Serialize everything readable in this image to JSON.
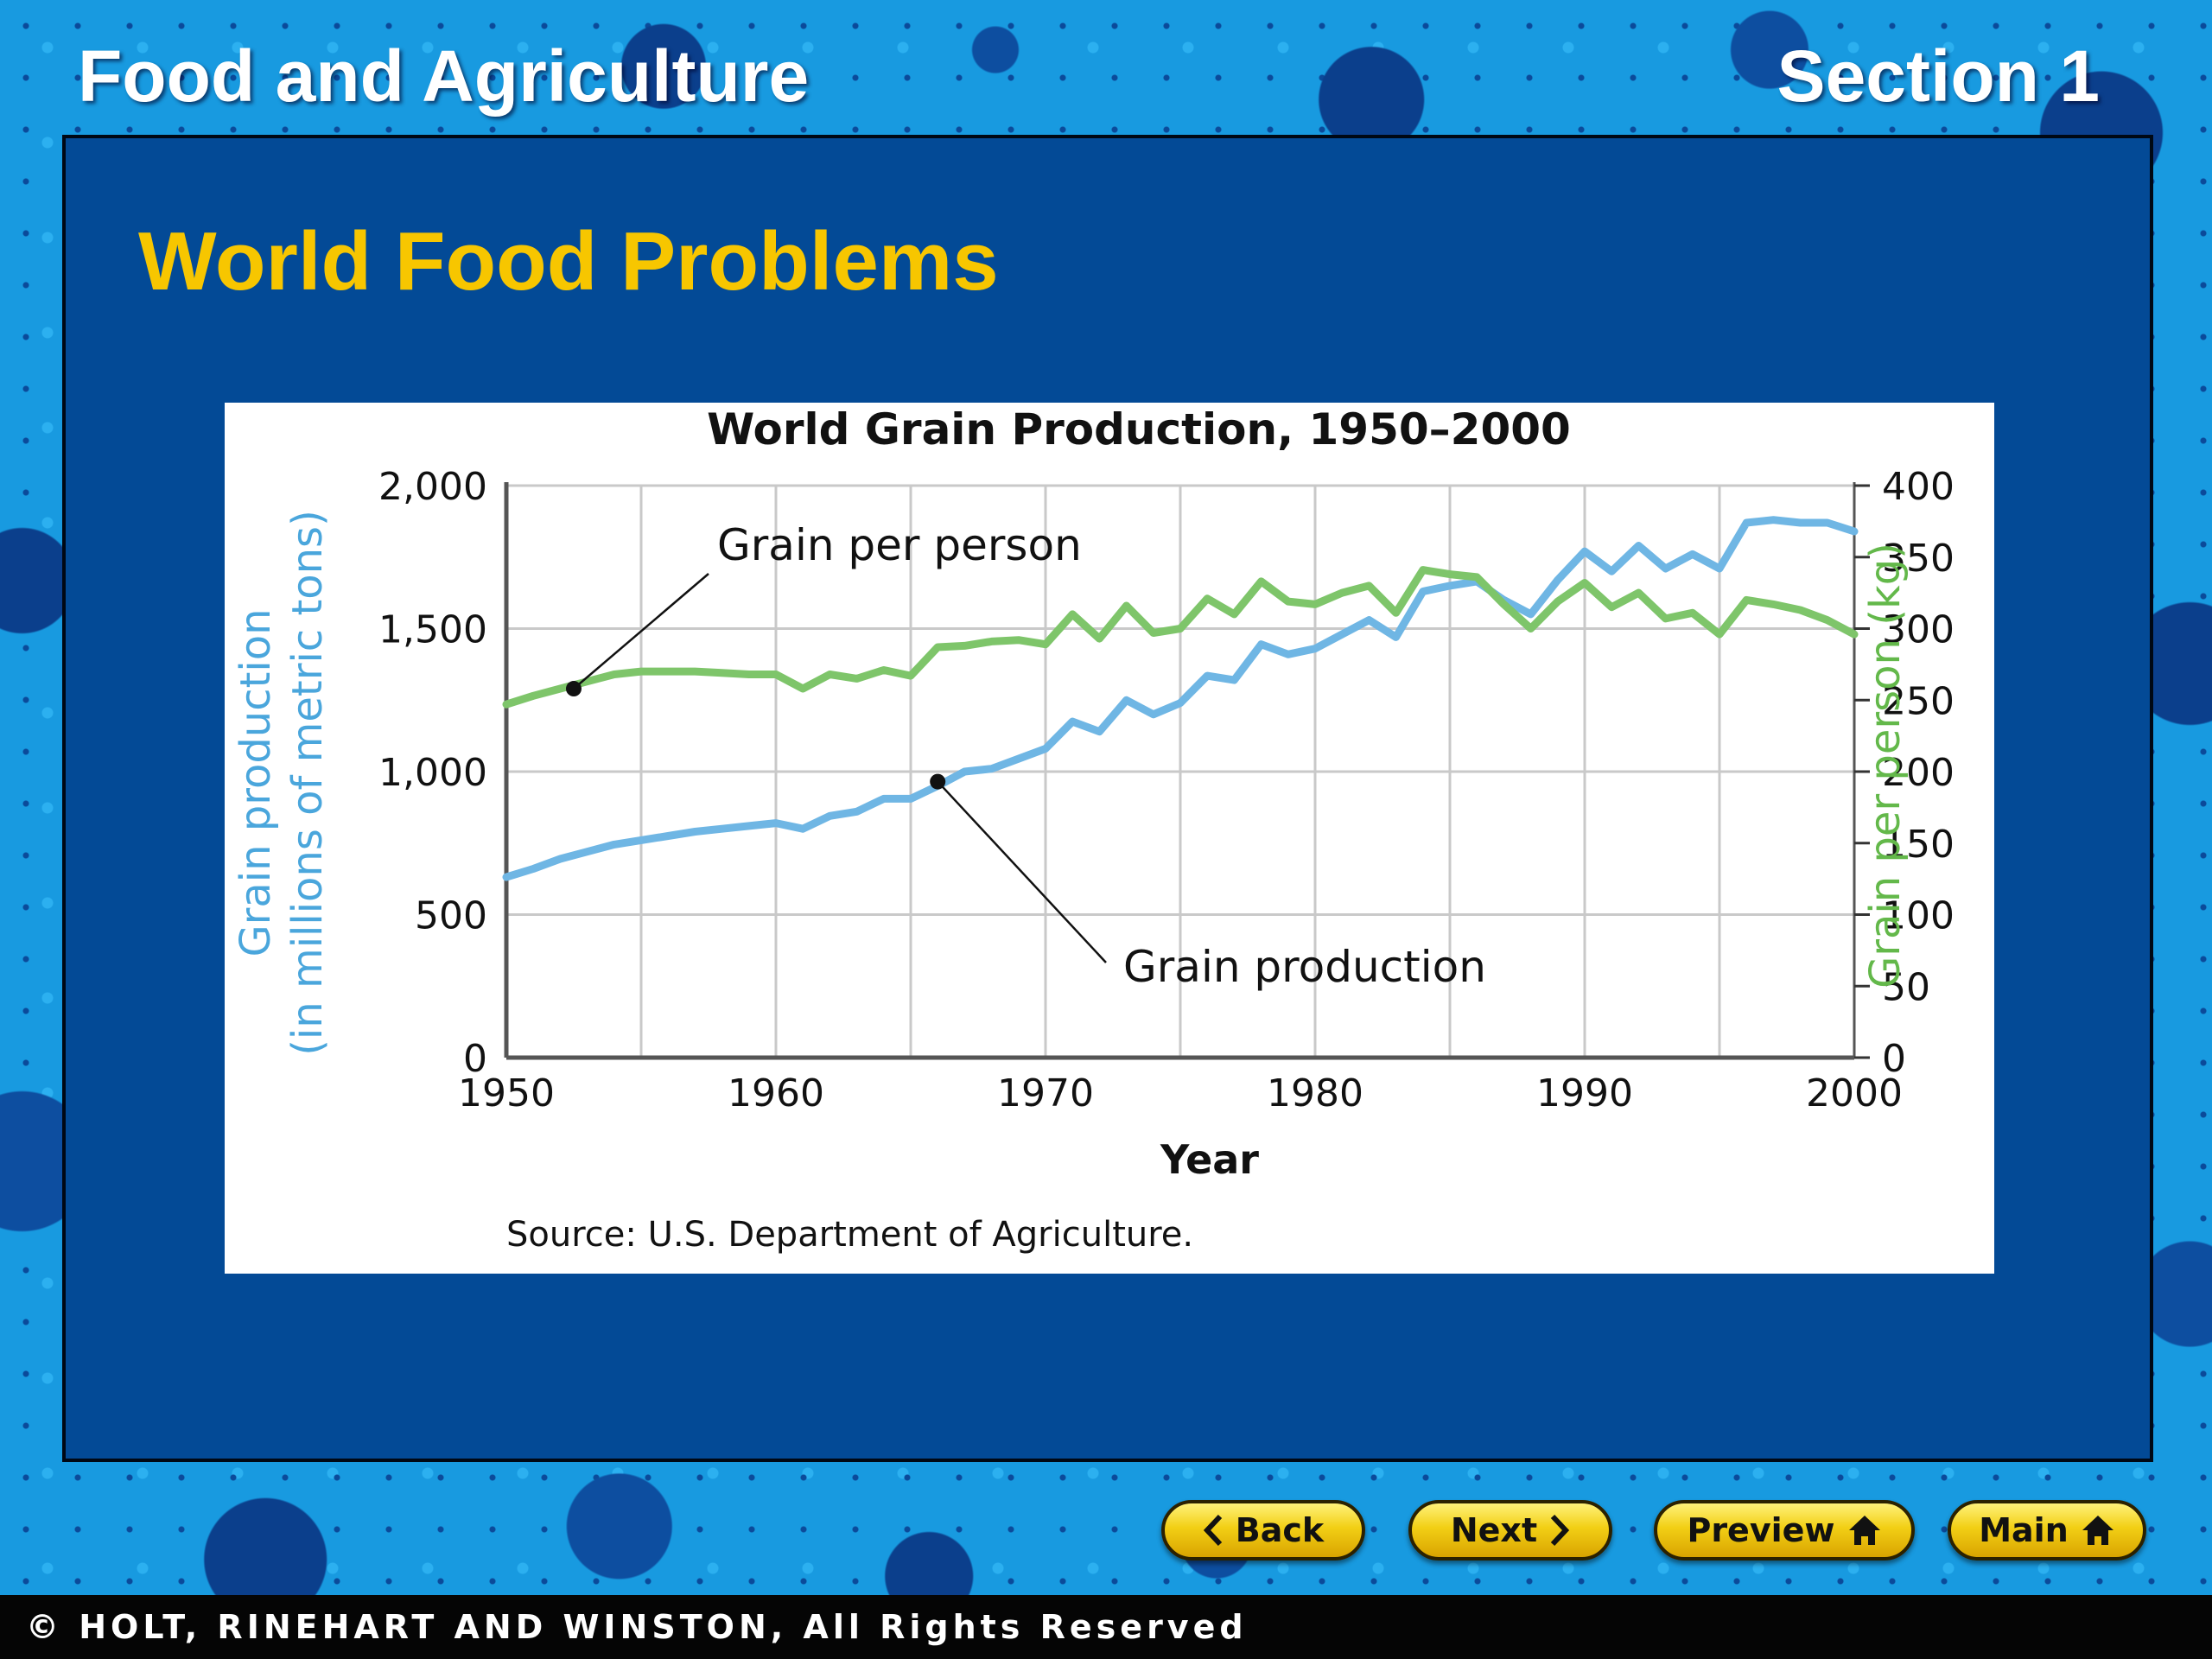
{
  "header": {
    "left_title": "Food and Agriculture",
    "right_title": "Section 1"
  },
  "slide": {
    "title": "World Food Problems"
  },
  "chart_data": {
    "type": "line",
    "title": "World Grain Production, 1950–2000",
    "xlabel": "Year",
    "ylabel_left": [
      "Grain production",
      "(in millions of metric tons)"
    ],
    "ylabel_right": "Grain per person (kg)",
    "xlim": [
      1950,
      2000
    ],
    "ylim_left": [
      0,
      2000
    ],
    "ylim_right": [
      0,
      400
    ],
    "x_ticks": [
      "1950",
      "1960",
      "1970",
      "1980",
      "1990",
      "2000"
    ],
    "y_ticks_left": [
      "0",
      "500",
      "1,000",
      "1,500",
      "2,000"
    ],
    "y_ticks_right": [
      "0",
      "50",
      "100",
      "150",
      "200",
      "250",
      "300",
      "350",
      "400"
    ],
    "grid": true,
    "source": "Source: U.S. Department of Agriculture.",
    "colors": {
      "production": "#6fb6e4",
      "per_person": "#7ec56a"
    },
    "annotations": [
      {
        "text": "Grain per person",
        "series": "per_person",
        "x": 1952.5,
        "y": 258
      },
      {
        "text": "Grain production",
        "series": "production",
        "x": 1966,
        "y": 965
      }
    ],
    "x": [
      1950,
      1951,
      1952,
      1953,
      1954,
      1955,
      1956,
      1957,
      1958,
      1959,
      1960,
      1961,
      1962,
      1963,
      1964,
      1965,
      1966,
      1967,
      1968,
      1969,
      1970,
      1971,
      1972,
      1973,
      1974,
      1975,
      1976,
      1977,
      1978,
      1979,
      1980,
      1981,
      1982,
      1983,
      1984,
      1985,
      1986,
      1987,
      1988,
      1989,
      1990,
      1991,
      1992,
      1993,
      1994,
      1995,
      1996,
      1997,
      1998,
      1999,
      2000
    ],
    "series": [
      {
        "key": "production",
        "axis": "left",
        "values": [
          631,
          660,
          695,
          720,
          745,
          760,
          775,
          790,
          800,
          810,
          820,
          800,
          845,
          860,
          905,
          905,
          950,
          1000,
          1010,
          1045,
          1080,
          1175,
          1140,
          1250,
          1200,
          1240,
          1335,
          1320,
          1445,
          1410,
          1430,
          1480,
          1530,
          1470,
          1630,
          1650,
          1665,
          1600,
          1550,
          1670,
          1770,
          1700,
          1790,
          1710,
          1760,
          1710,
          1870,
          1880,
          1870,
          1870,
          1840
        ]
      },
      {
        "key": "per_person",
        "axis": "right",
        "values": [
          247,
          253,
          258,
          263,
          268,
          270,
          270,
          270,
          269,
          268,
          268,
          258,
          268,
          265,
          271,
          267,
          287,
          288,
          291,
          292,
          289,
          310,
          293,
          316,
          297,
          300,
          321,
          310,
          333,
          319,
          317,
          325,
          330,
          311,
          341,
          338,
          336,
          317,
          300,
          319,
          332,
          315,
          325,
          307,
          311,
          296,
          320,
          317,
          313,
          306,
          296
        ]
      }
    ]
  },
  "nav": {
    "back": "Back",
    "next": "Next",
    "preview": "Preview",
    "main": "Main"
  },
  "footer": {
    "copyright": "© HOLT, RINEHART AND WINSTON, All Rights Reserved"
  }
}
